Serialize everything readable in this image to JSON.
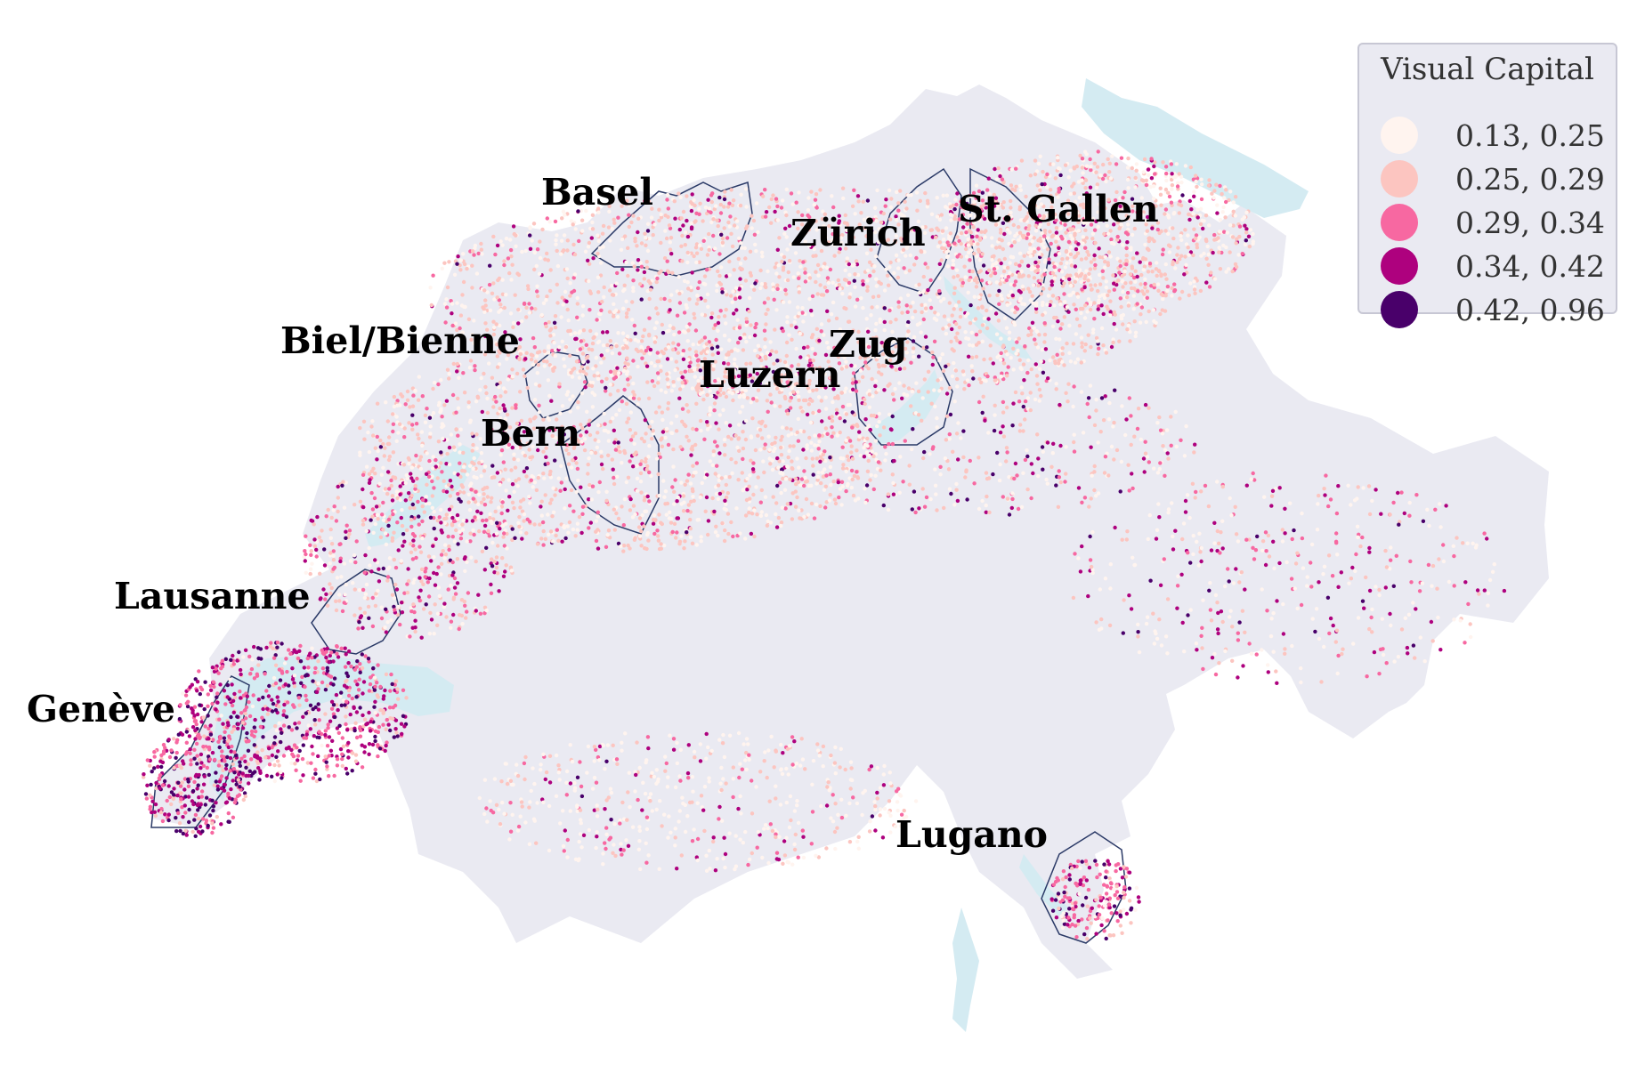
{
  "legend": {
    "title": "Visual Capital",
    "items": [
      {
        "label": "0.13, 0.25",
        "color": "#fff4ef"
      },
      {
        "label": "0.25, 0.29",
        "color": "#fcc5c0"
      },
      {
        "label": "0.29, 0.34",
        "color": "#f768a1"
      },
      {
        "label": "0.34, 0.42",
        "color": "#ae017e"
      },
      {
        "label": "0.42, 0.96",
        "color": "#49006a"
      }
    ]
  },
  "cities": {
    "basel": "Basel",
    "zurich": "Zürich",
    "st_gallen": "St. Gallen",
    "biel": "Biel/Bienne",
    "zug": "Zug",
    "luzern": "Luzern",
    "bern": "Bern",
    "lausanne": "Lausanne",
    "geneve": "Genève",
    "lugano": "Lugano"
  },
  "colors": {
    "land": "#eaeaf2",
    "water": "#d4ebf2",
    "boundary": "#2b3a67"
  }
}
